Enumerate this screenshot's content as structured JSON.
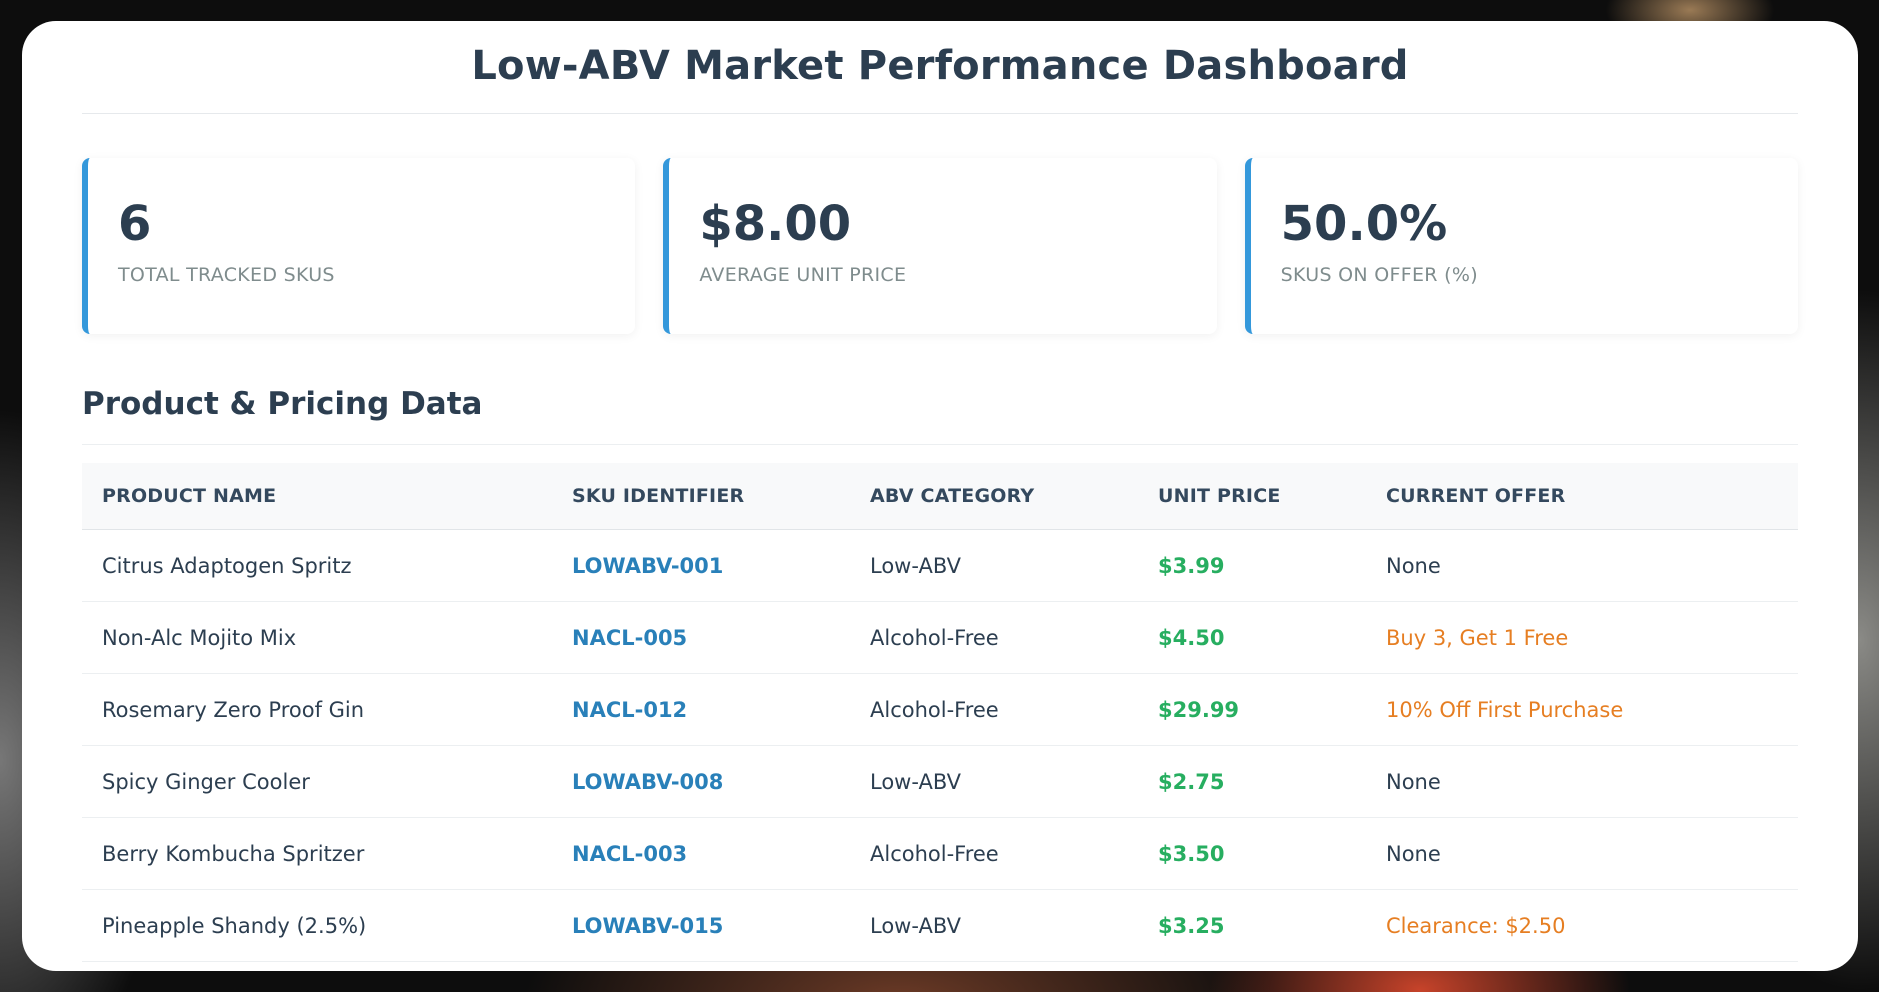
{
  "dashboard": {
    "title": "Low-ABV Market Performance Dashboard"
  },
  "stats": [
    {
      "value": "6",
      "label": "TOTAL TRACKED SKUS"
    },
    {
      "value": "$8.00",
      "label": "AVERAGE UNIT PRICE"
    },
    {
      "value": "50.0%",
      "label": "SKUS ON OFFER (%)"
    }
  ],
  "section": {
    "title": "Product & Pricing Data"
  },
  "table": {
    "headers": [
      "PRODUCT NAME",
      "SKU IDENTIFIER",
      "ABV CATEGORY",
      "UNIT PRICE",
      "CURRENT OFFER"
    ],
    "rows": [
      {
        "name": "Citrus Adaptogen Spritz",
        "sku": "LOWABV-001",
        "abv": "Low-ABV",
        "price": "$3.99",
        "offer": "None"
      },
      {
        "name": "Non-Alc Mojito Mix",
        "sku": "NACL-005",
        "abv": "Alcohol-Free",
        "price": "$4.50",
        "offer": "Buy 3, Get 1 Free"
      },
      {
        "name": "Rosemary Zero Proof Gin",
        "sku": "NACL-012",
        "abv": "Alcohol-Free",
        "price": "$29.99",
        "offer": "10% Off First Purchase"
      },
      {
        "name": "Spicy Ginger Cooler",
        "sku": "LOWABV-008",
        "abv": "Low-ABV",
        "price": "$2.75",
        "offer": "None"
      },
      {
        "name": "Berry Kombucha Spritzer",
        "sku": "NACL-003",
        "abv": "Alcohol-Free",
        "price": "$3.50",
        "offer": "None"
      },
      {
        "name": "Pineapple Shandy (2.5%)",
        "sku": "LOWABV-015",
        "abv": "Low-ABV",
        "price": "$3.25",
        "offer": "Clearance: $2.50"
      }
    ]
  },
  "colors": {
    "accent": "#3498db",
    "sku": "#2980b9",
    "price": "#27ae60",
    "offer": "#e67e22",
    "heading": "#2c3e50"
  }
}
